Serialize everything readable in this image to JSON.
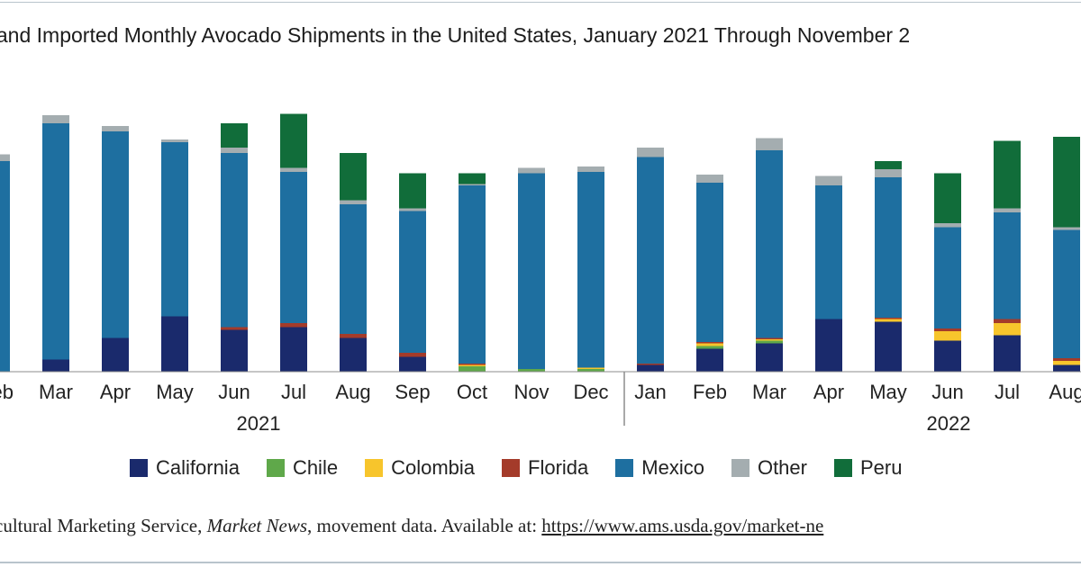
{
  "chart_data": {
    "type": "stacked-bar",
    "title": "c and Imported Monthly Avocado Shipments in the United States, January 2021 Through November 2",
    "year_groups": [
      "2021",
      "2022"
    ],
    "categories": [
      "Feb",
      "Mar",
      "Apr",
      "May",
      "Jun",
      "Jul",
      "Aug",
      "Sep",
      "Oct",
      "Nov",
      "Dec",
      "Jan",
      "Feb",
      "Mar",
      "Apr",
      "May",
      "Jun",
      "Jul",
      "Aug"
    ],
    "category_year": [
      "2021",
      "2021",
      "2021",
      "2021",
      "2021",
      "2021",
      "2021",
      "2021",
      "2021",
      "2021",
      "2021",
      "2022",
      "2022",
      "2022",
      "2022",
      "2022",
      "2022",
      "2022",
      "2022"
    ],
    "legend_position": "bottom",
    "grid": false,
    "series": [
      {
        "name": "California",
        "color": "#1a2a6c",
        "values": [
          0,
          4.5,
          12.5,
          20.5,
          15.5,
          16.5,
          12.5,
          5.5,
          0,
          0,
          0,
          2.5,
          8.5,
          10.5,
          19.5,
          18.5,
          11.5,
          13.5,
          2.5
        ]
      },
      {
        "name": "Chile",
        "color": "#5fa84a",
        "values": [
          0,
          0,
          0,
          0,
          0,
          0,
          0,
          0,
          2,
          1,
          1,
          0,
          1,
          1,
          0,
          0,
          0,
          0,
          0
        ]
      },
      {
        "name": "Colombia",
        "color": "#f7c52c",
        "values": [
          0,
          0,
          0,
          0,
          0,
          0,
          0,
          0,
          0.5,
          0,
          0.5,
          0,
          1,
          0.5,
          0,
          1,
          3.5,
          4.5,
          1.5
        ]
      },
      {
        "name": "Florida",
        "color": "#a43b2a",
        "values": [
          0,
          0,
          0,
          0,
          1,
          1.5,
          1.5,
          1.5,
          0.5,
          0,
          0,
          0.5,
          0.5,
          0.5,
          0,
          0.5,
          1,
          1.5,
          1
        ]
      },
      {
        "name": "Mexico",
        "color": "#1e6fa0",
        "values": [
          78,
          87.5,
          76.5,
          64.5,
          64.5,
          56,
          48,
          52.5,
          66,
          72.5,
          72.5,
          76.5,
          59,
          69.5,
          49.5,
          52,
          37.5,
          39.5,
          47.5
        ]
      },
      {
        "name": "Other",
        "color": "#a4adb0",
        "values": [
          2.5,
          3,
          2,
          1,
          2,
          1.5,
          1.5,
          1,
          0.5,
          2,
          2,
          3.5,
          3,
          4.5,
          3.5,
          3,
          1.5,
          1.5,
          1
        ]
      },
      {
        "name": "Peru",
        "color": "#116d3a",
        "values": [
          0,
          0,
          0,
          0,
          9,
          20,
          17.5,
          13,
          4,
          0,
          0,
          0,
          0,
          0,
          0,
          3,
          18.5,
          25,
          33.5
        ]
      }
    ]
  },
  "source_text": "cultural Marketing Service, ",
  "source_italic": "Market News",
  "source_rest": ", movement data. Available at: ",
  "source_link": "https://www.ams.usda.gov/market-ne"
}
